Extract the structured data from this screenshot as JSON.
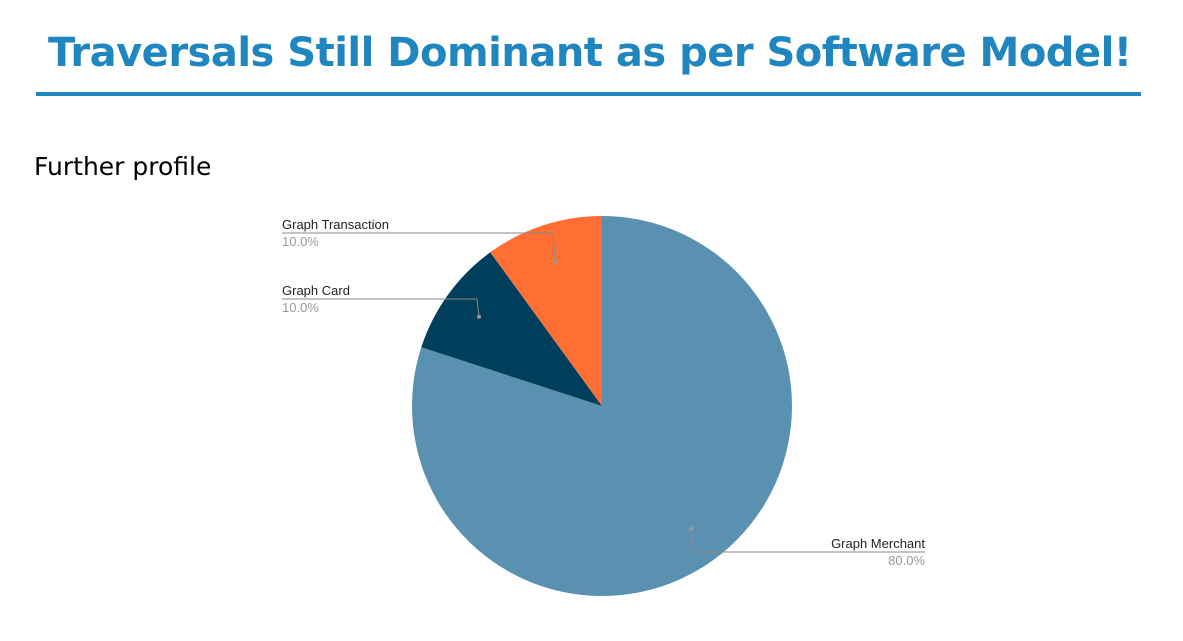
{
  "slide": {
    "title": "Traversals Still Dominant as per Software Model!",
    "subtitle": "Further profile"
  },
  "colors": {
    "title": "#1f86bf",
    "rule": "#1f86bf"
  },
  "chart_data": {
    "type": "pie",
    "title": "",
    "slices": [
      {
        "label": "Graph Merchant",
        "value": 80.0,
        "display": "80.0%",
        "color": "#5a91b0"
      },
      {
        "label": "Graph Card",
        "value": 10.0,
        "display": "10.0%",
        "color": "#003f5c"
      },
      {
        "label": "Graph Transaction",
        "value": 10.0,
        "display": "10.0%",
        "color": "#ff6e33"
      }
    ],
    "start": "12 o'clock",
    "direction": "clockwise",
    "legend": "none",
    "labels": "outside with leader lines"
  }
}
